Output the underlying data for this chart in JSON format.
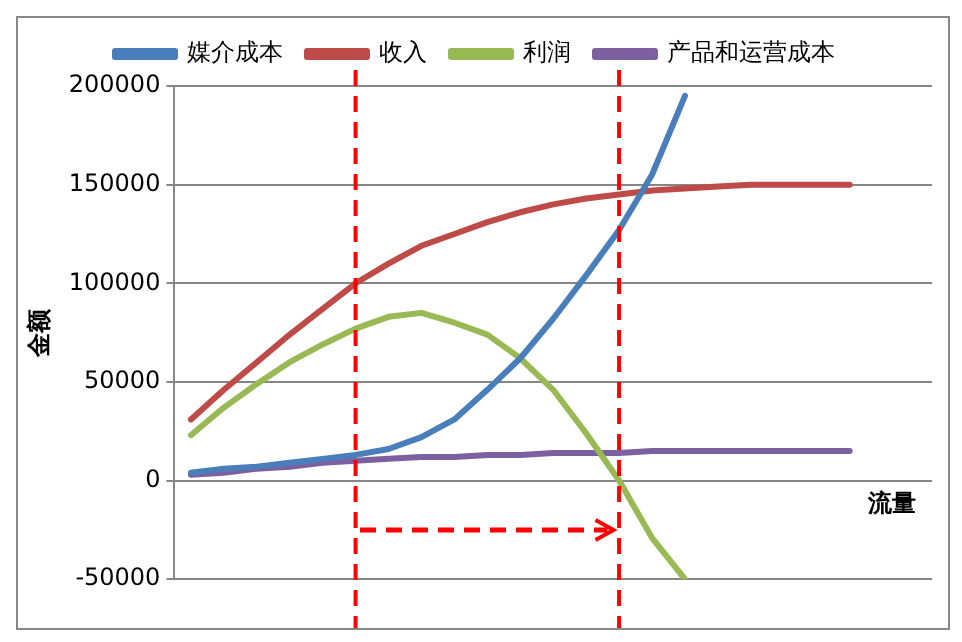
{
  "chart_data": {
    "type": "line",
    "ylabel": "金额",
    "xlabel": "流量",
    "categories": [
      null,
      null,
      null,
      null,
      null,
      null,
      null,
      null,
      null,
      null,
      null,
      null,
      null,
      null,
      null,
      null,
      null,
      null,
      null,
      null,
      null,
      null,
      null
    ],
    "ylim": [
      -50000,
      200000
    ],
    "yticks": [
      -50000,
      0,
      50000,
      100000,
      150000,
      200000
    ],
    "grid": "y",
    "legend": "top",
    "marker": "none",
    "series": [
      {
        "name": "媒介成本",
        "color": "#4a7ebb",
        "values": [
          4000,
          6000,
          7000,
          9000,
          11000,
          13000,
          16000,
          22000,
          31000,
          46000,
          62000,
          82000,
          104000,
          127000,
          155000,
          195000,
          null,
          null,
          null,
          null,
          null,
          null,
          null
        ]
      },
      {
        "name": "收入",
        "color": "#be4b48",
        "values": [
          31000,
          46000,
          60000,
          74000,
          87000,
          100000,
          110000,
          119000,
          125000,
          131000,
          136000,
          140000,
          143000,
          145000,
          147000,
          148000,
          149000,
          150000,
          150000,
          150000,
          150000,
          null,
          null
        ]
      },
      {
        "name": "利润",
        "color": "#98b954",
        "values": [
          23000,
          37000,
          49000,
          60000,
          69000,
          77000,
          83000,
          85000,
          80000,
          74000,
          62000,
          46000,
          24000,
          0,
          -29000,
          -50000,
          null,
          null,
          null,
          null,
          null,
          null,
          null
        ]
      },
      {
        "name": "产品和运营成本",
        "color": "#7d60a0",
        "values": [
          3000,
          4000,
          6000,
          7000,
          9000,
          10000,
          11000,
          12000,
          12000,
          13000,
          13000,
          14000,
          14000,
          14000,
          15000,
          15000,
          15000,
          15000,
          15000,
          15000,
          15000,
          null,
          null
        ]
      }
    ]
  }
}
